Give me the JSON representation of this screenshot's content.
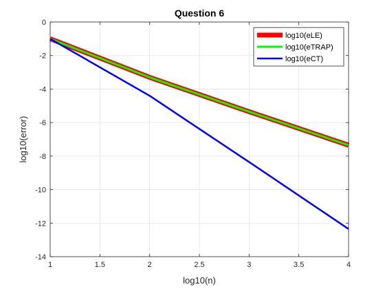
{
  "chart_data": {
    "type": "line",
    "title": "Question 6",
    "xlabel": "log10(n)",
    "ylabel": "log10(error)",
    "xlim": [
      1,
      4
    ],
    "ylim": [
      -14,
      0
    ],
    "xticks": [
      1,
      1.5,
      2,
      2.5,
      3,
      3.5,
      4
    ],
    "xtick_labels": [
      "1",
      "1.5",
      "2",
      "2.5",
      "3",
      "3.5",
      "4"
    ],
    "yticks": [
      -14,
      -12,
      -10,
      -8,
      -6,
      -4,
      -2,
      0
    ],
    "ytick_labels": [
      "-14",
      "-12",
      "-10",
      "-8",
      "-6",
      "-4",
      "-2",
      "0"
    ],
    "grid": true,
    "legend_position": "top-right",
    "series": [
      {
        "name": "log10(eLE)",
        "color": "#ff0000",
        "x": [
          1,
          2,
          3,
          4
        ],
        "y": [
          -1.0,
          -3.3,
          -5.35,
          -7.35
        ]
      },
      {
        "name": "log10(eTRAP)",
        "color": "#00ff00",
        "x": [
          1,
          2,
          3,
          4
        ],
        "y": [
          -1.0,
          -3.3,
          -5.35,
          -7.35
        ]
      },
      {
        "name": "log10(eCT)",
        "color": "#0000ff",
        "x": [
          1,
          2,
          3,
          4
        ],
        "y": [
          -1.0,
          -4.4,
          -8.35,
          -12.35
        ]
      }
    ]
  }
}
